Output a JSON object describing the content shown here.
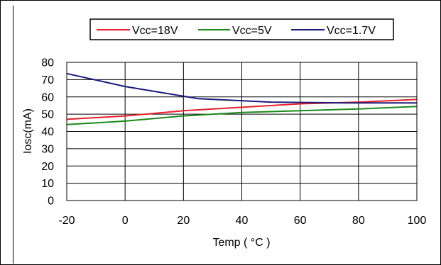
{
  "chart_data": {
    "type": "line",
    "title": "",
    "xlabel": "Temp ( °C )",
    "ylabel": "Iosc(mA)",
    "xlim": [
      -20,
      100
    ],
    "ylim": [
      0,
      80
    ],
    "xticks": [
      -20,
      0,
      20,
      40,
      60,
      80,
      100
    ],
    "yticks": [
      0,
      10,
      20,
      30,
      40,
      50,
      60,
      70,
      80
    ],
    "xtick_labels": [
      "-20",
      "0",
      "20",
      "40",
      "60",
      "80",
      "100"
    ],
    "ytick_labels": [
      "0",
      "10",
      "20",
      "30",
      "40",
      "50",
      "60",
      "70",
      "80"
    ],
    "grid": true,
    "legend_position": "top",
    "series": [
      {
        "name": "Vcc=18V",
        "color": "#e8202a",
        "x": [
          -20,
          0,
          20,
          40,
          60,
          80,
          100
        ],
        "y": [
          47,
          49,
          52,
          54,
          56,
          57,
          58.5
        ]
      },
      {
        "name": "Vcc=5V",
        "color": "#1a8a1a",
        "x": [
          -20,
          0,
          20,
          40,
          60,
          80,
          100
        ],
        "y": [
          44,
          46,
          49,
          51,
          52,
          53,
          54.5
        ]
      },
      {
        "name": "Vcc=1.7V",
        "color": "#1a1a7a",
        "x": [
          -20,
          0,
          25,
          50,
          75,
          100
        ],
        "y": [
          73.5,
          66,
          59,
          57,
          56.5,
          56.5
        ]
      }
    ]
  }
}
